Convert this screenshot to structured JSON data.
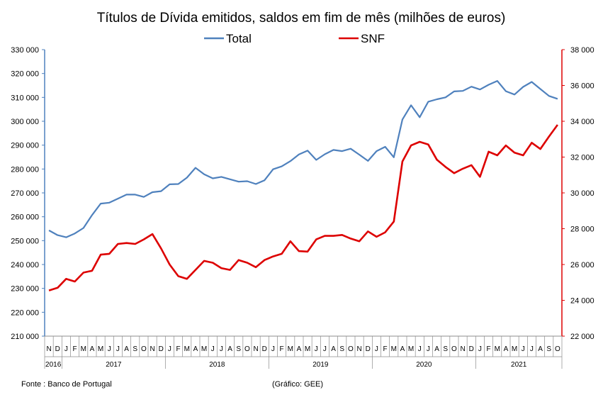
{
  "chart_data": {
    "type": "line",
    "title": "Títulos de Dívida emitidos, saldos em fim de mês  (milhões de euros)",
    "source": "Fonte : Banco de Portugal",
    "credit": "(Gráfico: GEE)",
    "legend_position": "top-center",
    "grid": false,
    "y_left": {
      "lim": [
        210000,
        330000
      ],
      "ticks": [
        "330 000",
        "320 000",
        "310 000",
        "300 000",
        "290 000",
        "280 000",
        "270 000",
        "260 000",
        "250 000",
        "240 000",
        "230 000",
        "220 000",
        "210 000"
      ]
    },
    "y_right": {
      "lim": [
        22000,
        38000
      ],
      "ticks": [
        "38 000",
        "36 000",
        "34 000",
        "32 000",
        "30 000",
        "28 000",
        "26 000",
        "24 000",
        "22 000"
      ]
    },
    "x_months": [
      "N",
      "D",
      "J",
      "F",
      "M",
      "A",
      "M",
      "J",
      "J",
      "A",
      "S",
      "O",
      "N",
      "D",
      "J",
      "F",
      "M",
      "A",
      "M",
      "J",
      "J",
      "A",
      "S",
      "O",
      "N",
      "D",
      "J",
      "F",
      "M",
      "A",
      "M",
      "J",
      "J",
      "A",
      "S",
      "O",
      "N",
      "D",
      "J",
      "F",
      "M",
      "A",
      "M",
      "J",
      "J",
      "A",
      "S",
      "O",
      "N",
      "D",
      "J",
      "F",
      "M",
      "A",
      "M",
      "J",
      "J",
      "A",
      "S",
      "O"
    ],
    "x_years": [
      {
        "label": "2016",
        "start": 0,
        "end": 2
      },
      {
        "label": "2017",
        "start": 2,
        "end": 14
      },
      {
        "label": "2018",
        "start": 14,
        "end": 26
      },
      {
        "label": "2019",
        "start": 26,
        "end": 38
      },
      {
        "label": "2020",
        "start": 38,
        "end": 50
      },
      {
        "label": "2021",
        "start": 50,
        "end": 60
      }
    ],
    "series": [
      {
        "name": "Total",
        "axis": "left",
        "color": "#4f81bd",
        "values": [
          254300,
          252300,
          251400,
          253000,
          255300,
          260700,
          265500,
          265900,
          267600,
          269300,
          269300,
          268300,
          270300,
          270700,
          273600,
          273700,
          276400,
          280500,
          277800,
          276100,
          276700,
          275700,
          274700,
          274900,
          273700,
          275300,
          279900,
          281100,
          283300,
          286100,
          287700,
          283800,
          286200,
          288000,
          287500,
          288500,
          286000,
          283400,
          287500,
          289300,
          284900,
          300700,
          306700,
          301700,
          308200,
          309200,
          310000,
          312500,
          312700,
          314500,
          313300,
          315300,
          316900,
          312600,
          311200,
          314400,
          316500,
          313500,
          310600,
          309400
        ]
      },
      {
        "name": "SNF",
        "axis": "right",
        "color": "#dd0000",
        "values": [
          24550,
          24700,
          25200,
          25050,
          25550,
          25650,
          26550,
          26600,
          27150,
          27200,
          27150,
          27400,
          27700,
          26900,
          26000,
          25350,
          25200,
          25700,
          26200,
          26100,
          25800,
          25700,
          26250,
          26100,
          25850,
          26250,
          26450,
          26600,
          27300,
          26750,
          26720,
          27400,
          27600,
          27600,
          27650,
          27450,
          27300,
          27850,
          27550,
          27800,
          28400,
          31750,
          32650,
          32850,
          32700,
          31850,
          31450,
          31100,
          31350,
          31550,
          30900,
          32300,
          32100,
          32650,
          32250,
          32100,
          32800,
          32450,
          33150,
          33800
        ]
      }
    ]
  }
}
